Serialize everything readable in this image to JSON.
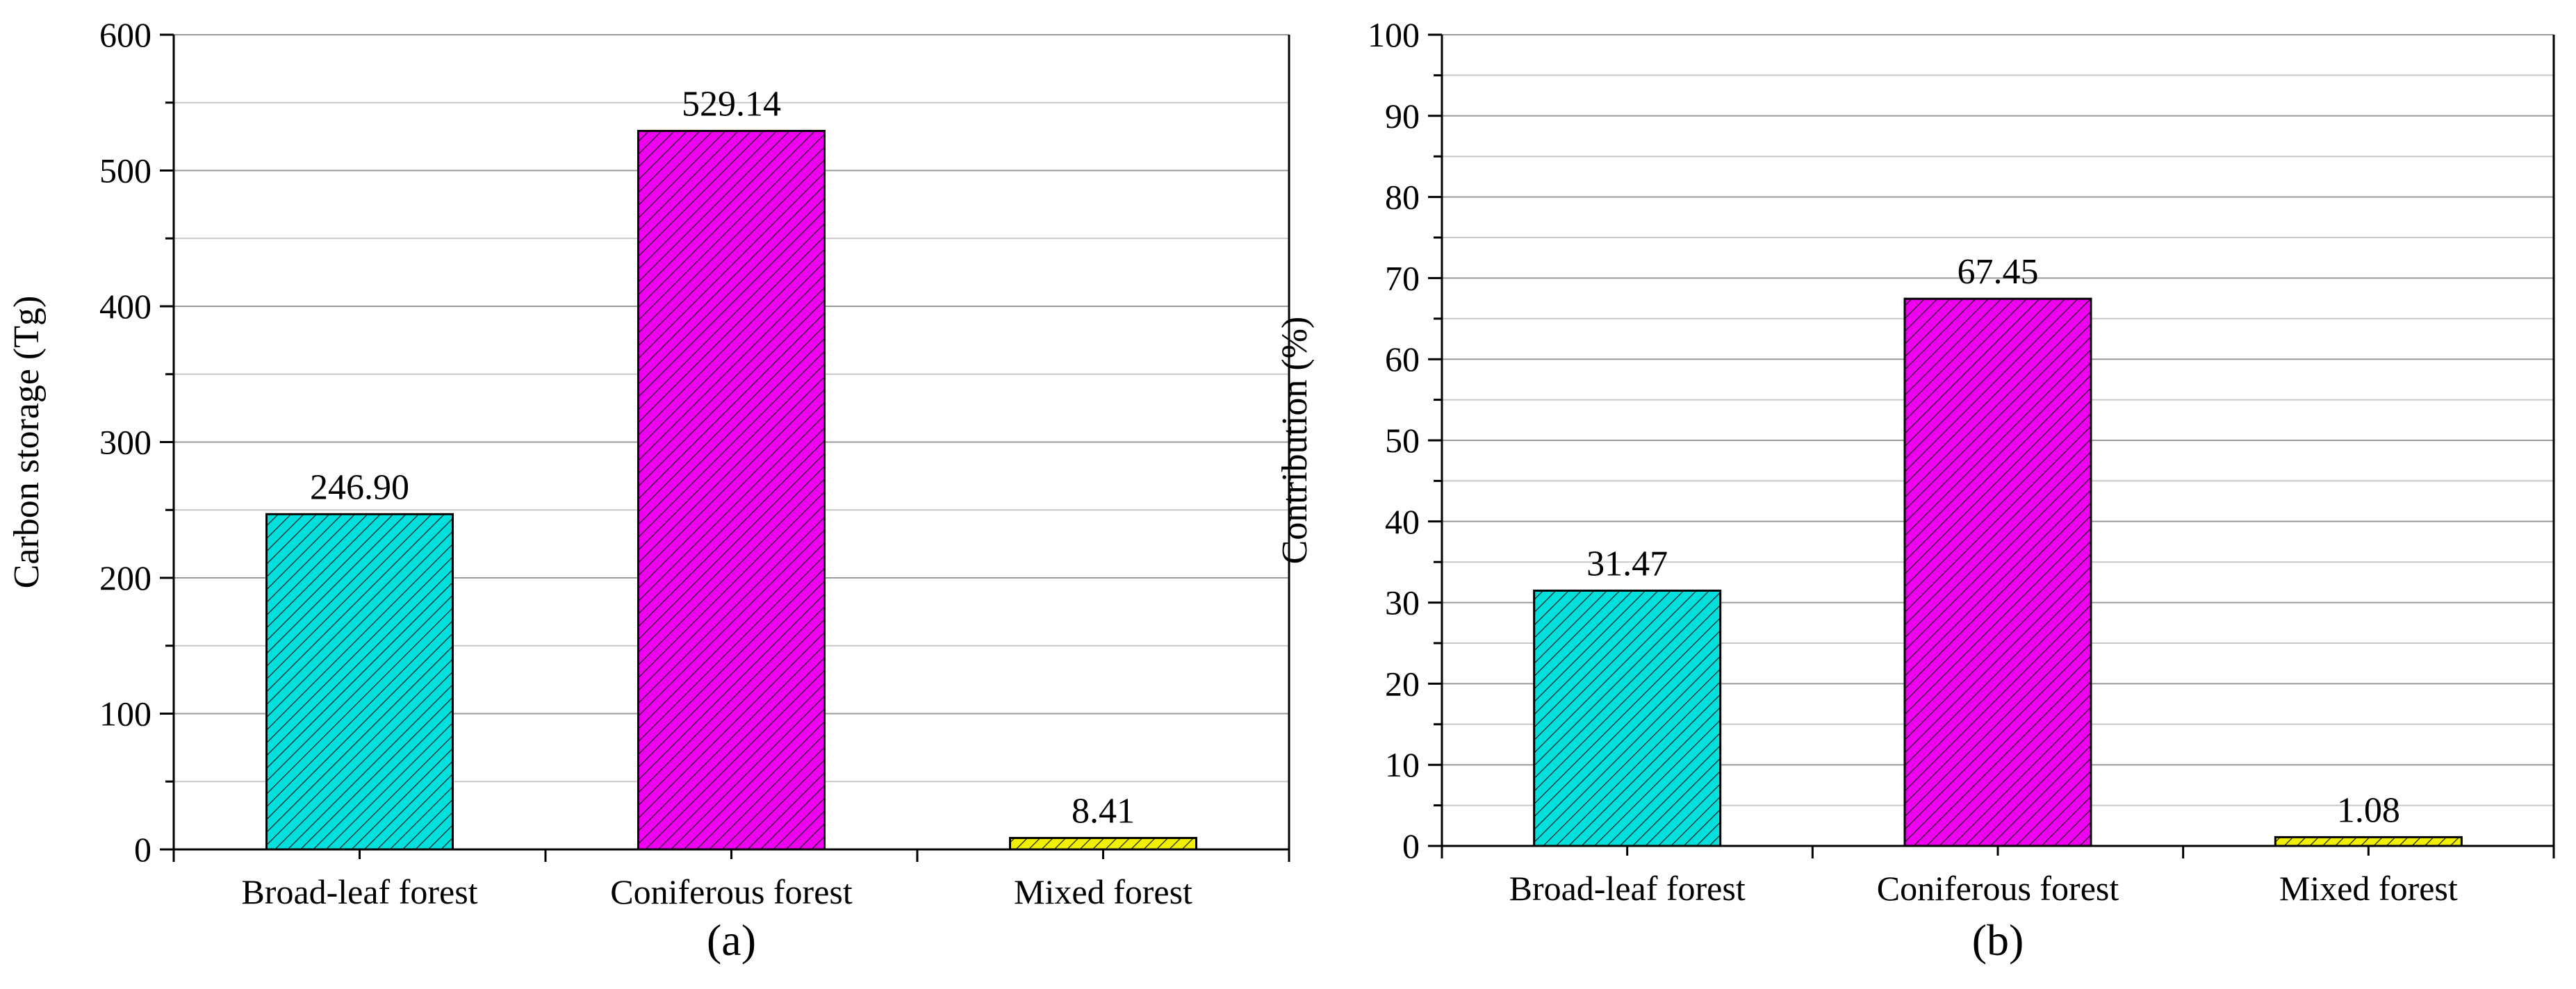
{
  "chart_data": [
    {
      "type": "bar",
      "panel_label": "(a)",
      "title": "",
      "xlabel": "",
      "ylabel": "Carbon storage (Tg)",
      "categories": [
        "Broad-leaf forest",
        "Coniferous forest",
        "Mixed forest"
      ],
      "values": [
        246.9,
        529.14,
        8.41
      ],
      "value_labels": [
        "246.90",
        "529.14",
        "8.41"
      ],
      "ylim": [
        0,
        600
      ],
      "yticks": [
        0,
        100,
        200,
        300,
        400,
        500,
        600
      ],
      "ytick_labels": [
        "0",
        "100",
        "200",
        "300",
        "400",
        "500",
        "600"
      ],
      "minor_step": 50,
      "grid": true,
      "colors": [
        "#00e0dc",
        "#f000f0",
        "#f0f000"
      ],
      "pattern": "diagonal-hatch"
    },
    {
      "type": "bar",
      "panel_label": "(b)",
      "title": "",
      "xlabel": "",
      "ylabel": "Contribution (%)",
      "categories": [
        "Broad-leaf forest",
        "Coniferous forest",
        "Mixed forest"
      ],
      "values": [
        31.47,
        67.45,
        1.08
      ],
      "value_labels": [
        "31.47",
        "67.45",
        "1.08"
      ],
      "ylim": [
        0,
        100
      ],
      "yticks": [
        0,
        10,
        20,
        30,
        40,
        50,
        60,
        70,
        80,
        90,
        100
      ],
      "ytick_labels": [
        "0",
        "10",
        "20",
        "30",
        "40",
        "50",
        "60",
        "70",
        "80",
        "90",
        "100"
      ],
      "minor_step": 5,
      "grid": true,
      "colors": [
        "#00e0dc",
        "#f000f0",
        "#f0f000"
      ],
      "pattern": "diagonal-hatch"
    }
  ]
}
